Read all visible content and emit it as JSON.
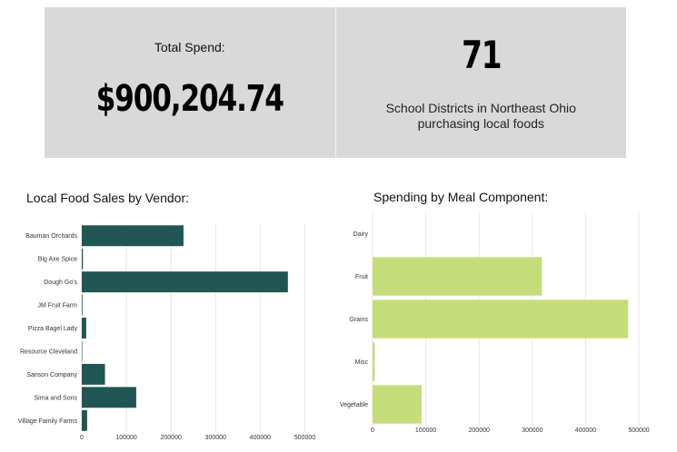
{
  "kpis": {
    "total_spend_label": "Total Spend:",
    "total_spend_value": "$900,204.74",
    "districts_value": "71",
    "districts_label": "School Districts in Northeast Ohio purchasing local foods"
  },
  "colors": {
    "panel_bg": "#d9d9d9",
    "vendor_bar": "#1f5553",
    "meal_bar": "#c5dc7a",
    "grid": "#e6e6e6"
  },
  "chart_data": [
    {
      "type": "bar",
      "orientation": "horizontal",
      "title": "Local Food Sales by Vendor:",
      "categories": [
        "Bauman Orchards",
        "Big Axe Spice",
        "Dough Go's",
        "JM Fruit Farm",
        "Pizza Bagel Lady",
        "Resource Cleveland",
        "Sanson Company",
        "Sima and Sons",
        "Village Family Farms"
      ],
      "values": [
        228000,
        2500,
        462000,
        1500,
        10000,
        1000,
        52000,
        122000,
        12000
      ],
      "xlim": [
        0,
        550000
      ],
      "xticks": [
        0,
        100000,
        200000,
        300000,
        400000,
        500000
      ],
      "xtick_labels": [
        "0",
        "100000",
        "200000",
        "300000",
        "400000",
        "500000"
      ],
      "xlabel": "",
      "ylabel": "",
      "grid": true
    },
    {
      "type": "bar",
      "orientation": "horizontal",
      "title": "Spending by Meal Component:",
      "categories": [
        "Dairy",
        "Fruit",
        "Grains",
        "Misc",
        "Vegetable"
      ],
      "values": [
        0,
        318000,
        480000,
        4000,
        92000
      ],
      "xlim": [
        0,
        500000
      ],
      "xticks": [
        0,
        100000,
        200000,
        300000,
        400000,
        500000
      ],
      "xtick_labels": [
        "0",
        "100000",
        "200000",
        "300000",
        "400000",
        "500000"
      ],
      "xlabel": "",
      "ylabel": "",
      "grid": true
    }
  ]
}
